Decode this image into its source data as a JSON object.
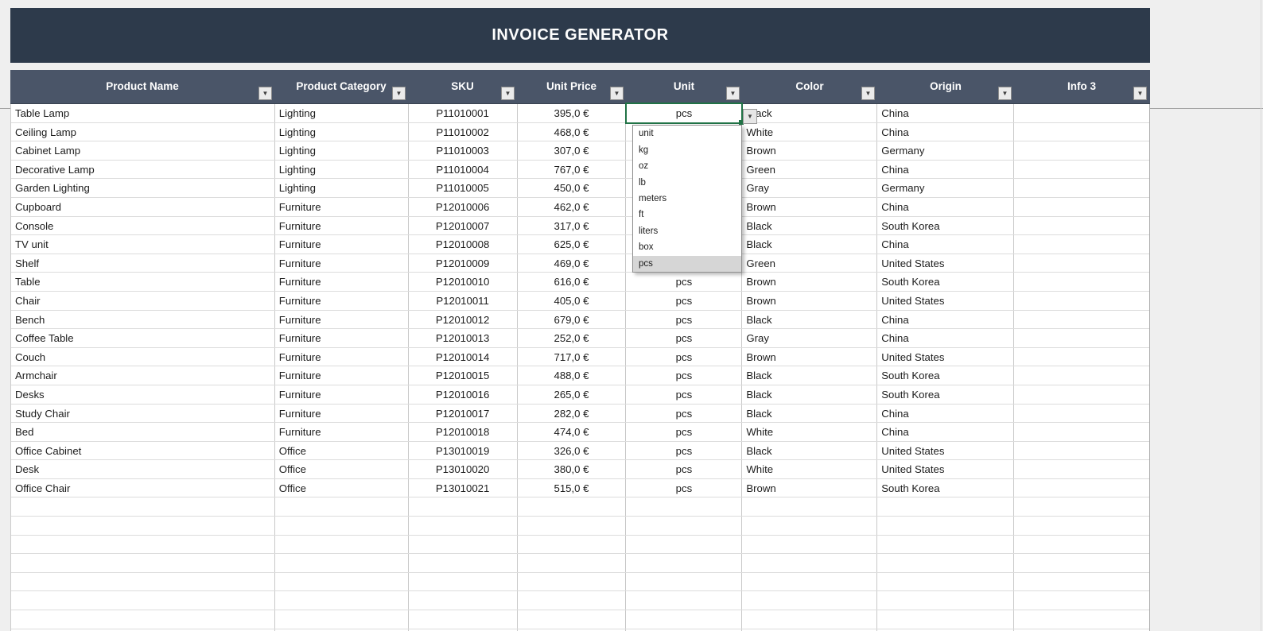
{
  "app": {
    "title": "INVOICE GENERATOR"
  },
  "table": {
    "columns": [
      {
        "label": "Product Name"
      },
      {
        "label": "Product Category"
      },
      {
        "label": "SKU"
      },
      {
        "label": "Unit Price"
      },
      {
        "label": "Unit"
      },
      {
        "label": "Color"
      },
      {
        "label": "Origin"
      },
      {
        "label": "Info 3"
      }
    ],
    "rows": [
      [
        "Table Lamp",
        "Lighting",
        "P11010001",
        "395,0 €",
        "pcs",
        "Black",
        "China",
        ""
      ],
      [
        "Ceiling Lamp",
        "Lighting",
        "P11010002",
        "468,0 €",
        "",
        "White",
        "China",
        ""
      ],
      [
        "Cabinet Lamp",
        "Lighting",
        "P11010003",
        "307,0 €",
        "",
        "Brown",
        "Germany",
        ""
      ],
      [
        "Decorative Lamp",
        "Lighting",
        "P11010004",
        "767,0 €",
        "",
        "Green",
        "China",
        ""
      ],
      [
        "Garden Lighting",
        "Lighting",
        "P11010005",
        "450,0 €",
        "",
        "Gray",
        "Germany",
        ""
      ],
      [
        "Cupboard",
        "Furniture",
        "P12010006",
        "462,0 €",
        "",
        "Brown",
        "China",
        ""
      ],
      [
        "Console",
        "Furniture",
        "P12010007",
        "317,0 €",
        "",
        "Black",
        "South Korea",
        ""
      ],
      [
        "TV unit",
        "Furniture",
        "P12010008",
        "625,0 €",
        "",
        "Black",
        "China",
        ""
      ],
      [
        "Shelf",
        "Furniture",
        "P12010009",
        "469,0 €",
        "",
        "Green",
        "United States",
        ""
      ],
      [
        "Table",
        "Furniture",
        "P12010010",
        "616,0 €",
        "pcs",
        "Brown",
        "South Korea",
        ""
      ],
      [
        "Chair",
        "Furniture",
        "P12010011",
        "405,0 €",
        "pcs",
        "Brown",
        "United States",
        ""
      ],
      [
        "Bench",
        "Furniture",
        "P12010012",
        "679,0 €",
        "pcs",
        "Black",
        "China",
        ""
      ],
      [
        "Coffee Table",
        "Furniture",
        "P12010013",
        "252,0 €",
        "pcs",
        "Gray",
        "China",
        ""
      ],
      [
        "Couch",
        "Furniture",
        "P12010014",
        "717,0 €",
        "pcs",
        "Brown",
        "United States",
        ""
      ],
      [
        "Armchair",
        "Furniture",
        "P12010015",
        "488,0 €",
        "pcs",
        "Black",
        "South Korea",
        ""
      ],
      [
        "Desks",
        "Furniture",
        "P12010016",
        "265,0 €",
        "pcs",
        "Black",
        "South Korea",
        ""
      ],
      [
        "Study Chair",
        "Furniture",
        "P12010017",
        "282,0 €",
        "pcs",
        "Black",
        "China",
        ""
      ],
      [
        "Bed",
        "Furniture",
        "P12010018",
        "474,0 €",
        "pcs",
        "White",
        "China",
        ""
      ],
      [
        "Office Cabinet",
        "Office",
        "P13010019",
        "326,0 €",
        "pcs",
        "Black",
        "United States",
        ""
      ],
      [
        "Desk",
        "Office",
        "P13010020",
        "380,0 €",
        "pcs",
        "White",
        "United States",
        ""
      ],
      [
        "Office Chair",
        "Office",
        "P13010021",
        "515,0 €",
        "pcs",
        "Brown",
        "South Korea",
        ""
      ]
    ],
    "empty_row_count": 8
  },
  "unit_dropdown": {
    "selected_value": "pcs",
    "options": [
      "unit",
      "kg",
      "oz",
      "lb",
      "meters",
      "ft",
      "liters",
      "box",
      "pcs"
    ],
    "highlighted_option": "pcs"
  },
  "colors": {
    "banner_bg": "#2d3a4b",
    "header_bg": "#4a5568",
    "selection_green": "#217346",
    "dropdown_highlight": "#d6d6d6",
    "page_bg": "#efefef"
  }
}
